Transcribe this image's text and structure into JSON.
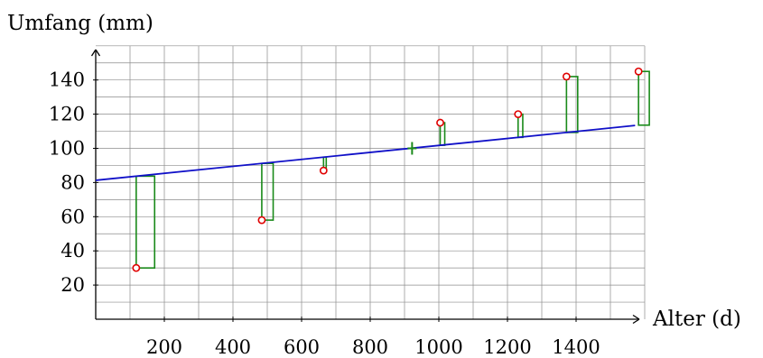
{
  "chart_data": {
    "type": "scatter",
    "title": "",
    "ylabel": "Umfang (mm)",
    "xlabel": "Alter (d)",
    "xlim": [
      0,
      1600
    ],
    "ylim": [
      0,
      160
    ],
    "x_ticks": [
      200,
      400,
      600,
      800,
      1000,
      1200,
      1400
    ],
    "y_ticks": [
      20,
      40,
      60,
      80,
      100,
      120,
      140
    ],
    "x_grid_step": 100,
    "y_grid_step": 10,
    "grid": true,
    "points": [
      {
        "x": 118,
        "y": 30
      },
      {
        "x": 484,
        "y": 58
      },
      {
        "x": 664,
        "y": 87
      },
      {
        "x": 1004,
        "y": 115
      },
      {
        "x": 1231,
        "y": 120
      },
      {
        "x": 1372,
        "y": 142
      },
      {
        "x": 1582,
        "y": 145
      }
    ],
    "regression_line": {
      "intercept": 81.3,
      "slope": 0.0204
    },
    "mean_point": {
      "x": 922,
      "y": 100
    },
    "colors": {
      "line": "#1010c8",
      "points": "#e00000",
      "residual_squares": "#1a8a1a",
      "mean_marker": "#1a8a1a",
      "grid": "#8c8c8c"
    }
  }
}
